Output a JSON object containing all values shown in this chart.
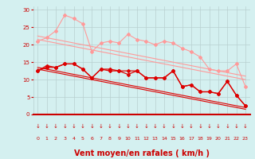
{
  "bg_color": "#d4f0f0",
  "grid_color": "#b8d0d0",
  "xlabel": "Vent moyen/en rafales ( km/h )",
  "xlabel_color": "#cc0000",
  "xlabel_fontsize": 7,
  "tick_color": "#cc0000",
  "xlim": [
    -0.5,
    23.5
  ],
  "ylim": [
    0,
    31
  ],
  "yticks": [
    0,
    5,
    10,
    15,
    20,
    25,
    30
  ],
  "xticks": [
    0,
    1,
    2,
    3,
    4,
    5,
    6,
    7,
    8,
    9,
    10,
    11,
    12,
    13,
    14,
    15,
    16,
    17,
    18,
    19,
    20,
    21,
    22,
    23
  ],
  "x": [
    0,
    1,
    2,
    3,
    4,
    5,
    6,
    7,
    8,
    9,
    10,
    11,
    12,
    13,
    14,
    15,
    16,
    17,
    18,
    19,
    20,
    21,
    22,
    23
  ],
  "line_pink_jagged1": [
    21.0,
    22.0,
    24.0,
    28.5,
    27.5,
    26.0,
    18.0,
    20.5,
    21.0,
    20.5,
    23.0,
    21.5,
    21.0,
    20.0,
    21.0,
    20.5,
    19.0,
    18.0,
    16.5,
    13.0,
    12.5,
    12.5,
    14.5,
    8.0
  ],
  "line_pink_trend1": [
    21.5,
    21.0,
    20.5,
    20.0,
    19.5,
    19.0,
    18.5,
    18.0,
    17.5,
    17.0,
    16.5,
    16.0,
    15.5,
    15.0,
    14.5,
    14.0,
    13.5,
    13.0,
    12.5,
    12.0,
    11.5,
    11.0,
    10.5,
    10.0
  ],
  "line_pink_trend2": [
    22.5,
    22.0,
    21.5,
    21.0,
    20.5,
    20.0,
    19.5,
    19.0,
    18.5,
    18.0,
    17.5,
    17.0,
    16.5,
    16.0,
    15.5,
    15.0,
    14.5,
    14.0,
    13.5,
    13.0,
    12.5,
    12.0,
    11.5,
    11.0
  ],
  "line_red_jagged1": [
    12.5,
    14.0,
    13.5,
    14.5,
    14.5,
    13.0,
    10.5,
    13.0,
    13.0,
    12.5,
    11.5,
    12.5,
    10.5,
    10.5,
    10.5,
    12.5,
    8.0,
    8.5,
    6.5,
    6.5,
    6.0,
    9.5,
    5.5,
    2.5
  ],
  "line_red_jagged2": [
    12.5,
    13.5,
    13.5,
    14.5,
    14.5,
    13.0,
    10.5,
    13.0,
    12.5,
    12.5,
    12.5,
    12.5,
    10.5,
    10.5,
    10.5,
    12.5,
    8.0,
    8.5,
    6.5,
    6.5,
    6.0,
    9.5,
    5.5,
    2.5
  ],
  "line_red_trend1": [
    13.0,
    12.5,
    12.0,
    11.5,
    11.0,
    10.5,
    10.0,
    9.5,
    9.0,
    8.5,
    8.0,
    7.5,
    7.0,
    6.5,
    6.0,
    5.5,
    5.0,
    4.5,
    4.0,
    3.5,
    3.0,
    2.5,
    2.0,
    1.5
  ],
  "line_red_trend2": [
    13.5,
    13.0,
    12.5,
    12.0,
    11.5,
    11.0,
    10.5,
    10.0,
    9.5,
    9.0,
    8.5,
    8.0,
    7.5,
    7.0,
    6.5,
    6.0,
    5.5,
    5.0,
    4.5,
    4.0,
    3.5,
    3.0,
    2.5,
    2.0
  ],
  "color_pink": "#ff9999",
  "color_red": "#dd0000",
  "color_darkred": "#cc0000",
  "marker_size": 2.0
}
